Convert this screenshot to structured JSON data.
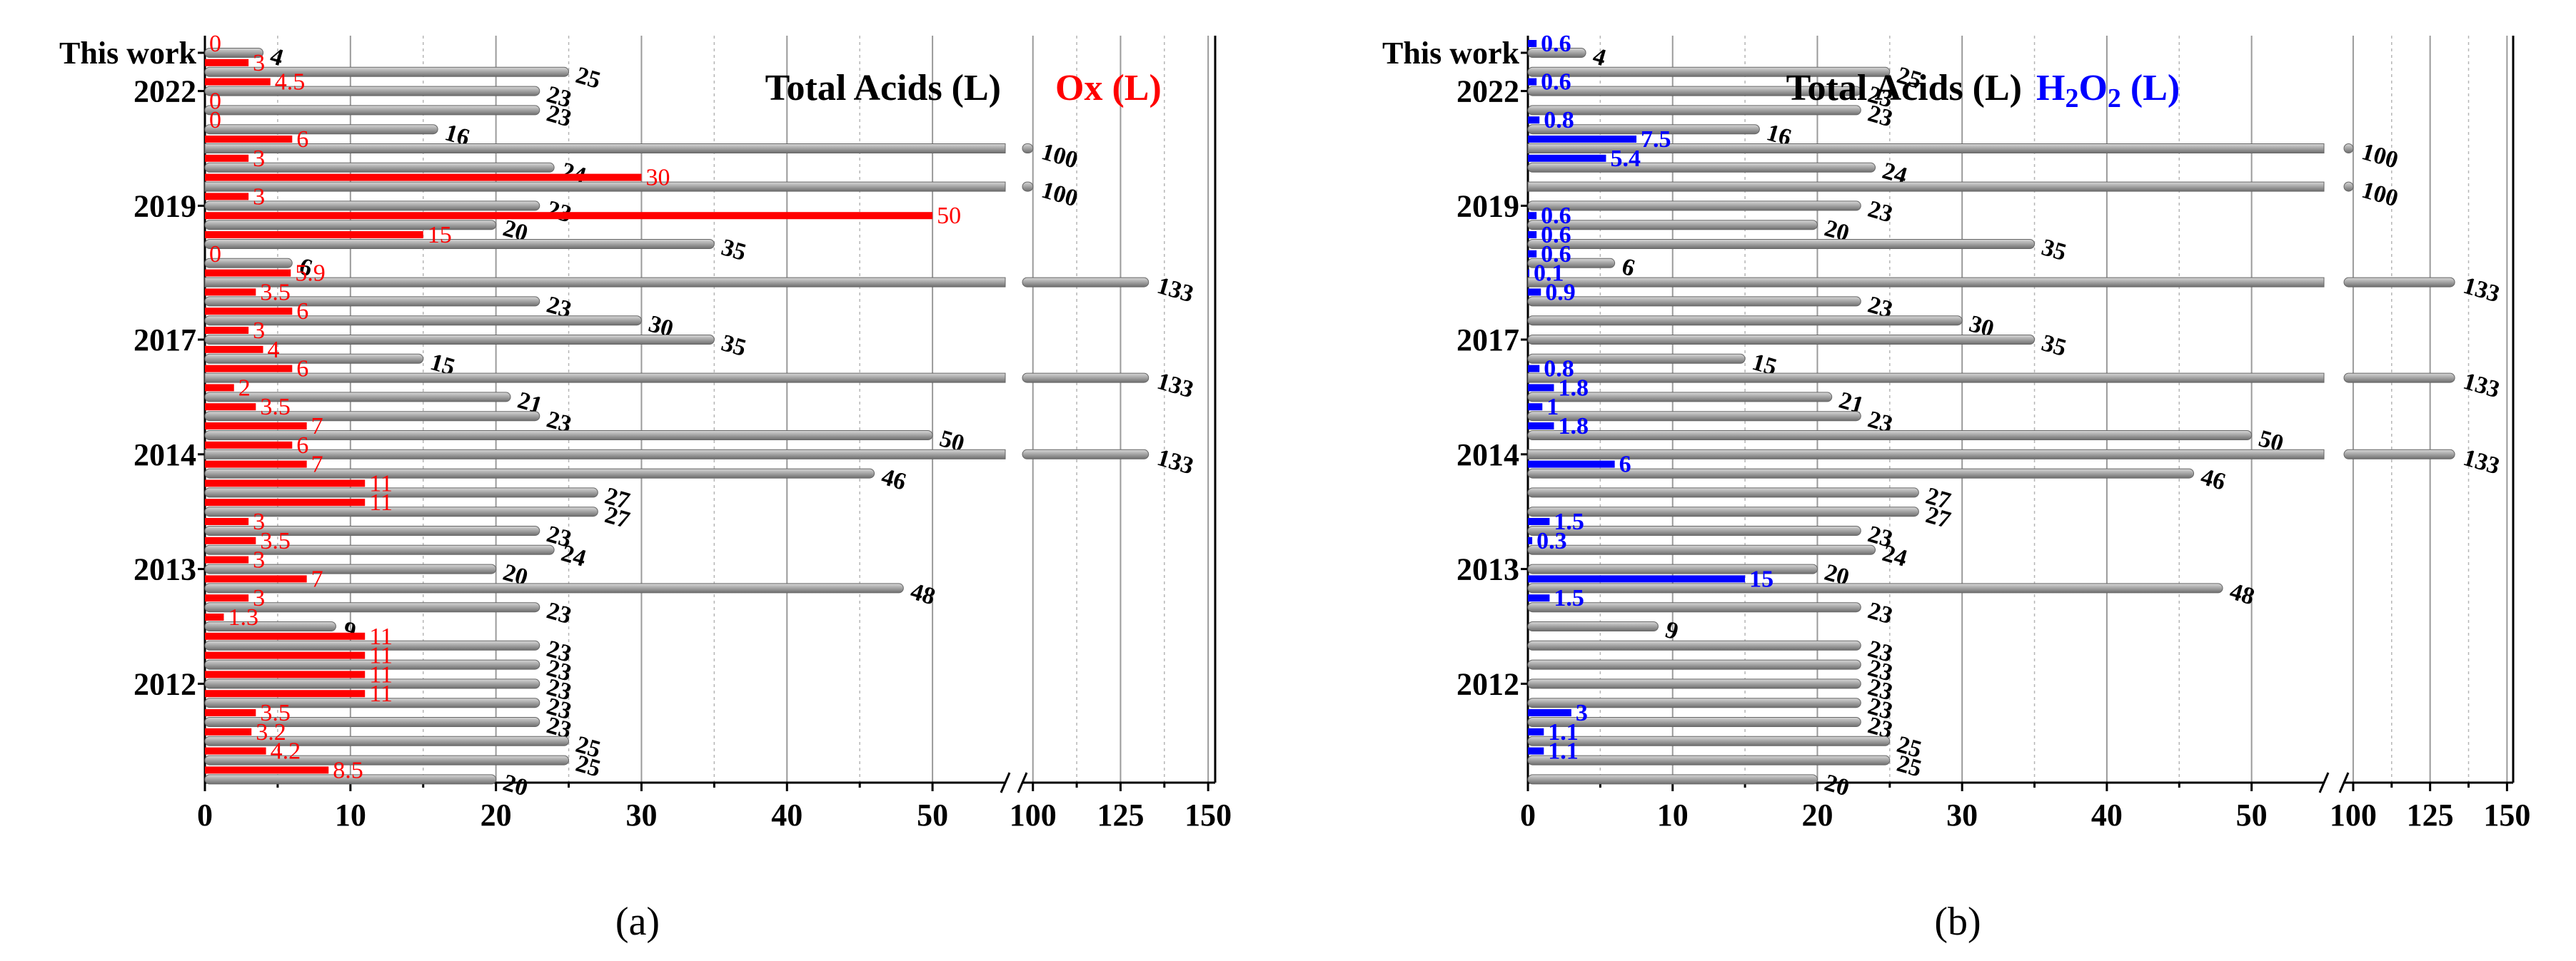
{
  "figure": {
    "panel_labels": [
      "(a)",
      "(b)"
    ]
  },
  "chart_data": [
    {
      "type": "bar",
      "orientation": "horizontal",
      "panel_label": "(a)",
      "title": "",
      "legend": [
        {
          "name": "Total Acids (L)",
          "color": "#000000"
        },
        {
          "name": "Ox (L)",
          "color": "#ff0000"
        }
      ],
      "y_tick_labels": [
        {
          "label": "This work",
          "row": 0
        },
        {
          "label": "2022",
          "row": 2
        },
        {
          "label": "2019",
          "row": 8
        },
        {
          "label": "2017",
          "row": 15
        },
        {
          "label": "2014",
          "row": 21
        },
        {
          "label": "2013",
          "row": 27
        },
        {
          "label": "2012",
          "row": 33
        }
      ],
      "x_axis": {
        "broken": true,
        "segment1": {
          "range": [
            0,
            55
          ],
          "ticks": [
            0,
            10,
            20,
            30,
            40,
            50
          ],
          "minor": [
            5,
            15,
            25,
            35,
            45
          ]
        },
        "segment2": {
          "range": [
            97,
            152
          ],
          "ticks": [
            100,
            125,
            150
          ],
          "minor": [
            112.5,
            137.5
          ]
        }
      },
      "series": [
        {
          "name": "Total Acids (L)",
          "color": "#9a9a9a",
          "values": [
            4,
            25,
            23,
            23,
            16,
            100,
            24,
            100,
            23,
            20,
            35,
            6,
            133,
            23,
            30,
            35,
            15,
            133,
            21,
            23,
            50,
            133,
            46,
            27,
            27,
            23,
            24,
            20,
            48,
            23,
            9,
            23,
            23,
            23,
            23,
            23,
            25,
            25,
            20
          ]
        },
        {
          "name": "Ox (L)",
          "color": "#ff0000",
          "values": [
            0,
            3,
            4.5,
            0,
            0,
            6,
            3,
            30,
            3,
            50,
            15,
            0,
            5.9,
            3.5,
            6,
            3,
            4,
            6,
            2,
            3.5,
            7,
            6,
            7,
            11,
            11,
            3,
            3.5,
            3,
            7,
            3,
            1.3,
            11,
            11,
            11,
            11,
            3.5,
            3.2,
            4.2,
            8.5
          ],
          "labels": [
            "0",
            "3",
            "4.5",
            "0",
            "0",
            "6",
            "3",
            "30",
            "3",
            "50",
            "15",
            "0",
            "5.9",
            "3.5",
            "6",
            "3",
            "4",
            "6",
            "2",
            "3.5",
            "7",
            "6",
            "7",
            "11",
            "11",
            "3",
            "3.5",
            "3",
            "7",
            "3",
            "1.3",
            "11",
            "11",
            "11",
            "11",
            "3.5",
            "3.2",
            "4.2",
            "8.5"
          ]
        }
      ]
    },
    {
      "type": "bar",
      "orientation": "horizontal",
      "panel_label": "(b)",
      "title": "",
      "legend": [
        {
          "name": "Total Acids (L)",
          "color": "#000000"
        },
        {
          "name": "H2O2 (L)",
          "color": "#0000ff"
        }
      ],
      "y_tick_labels": [
        {
          "label": "This work",
          "row": 0
        },
        {
          "label": "2022",
          "row": 2
        },
        {
          "label": "2019",
          "row": 8
        },
        {
          "label": "2017",
          "row": 15
        },
        {
          "label": "2014",
          "row": 21
        },
        {
          "label": "2013",
          "row": 27
        },
        {
          "label": "2012",
          "row": 33
        }
      ],
      "x_axis": {
        "broken": true,
        "segment1": {
          "range": [
            0,
            55
          ],
          "ticks": [
            0,
            10,
            20,
            30,
            40,
            50
          ],
          "minor": [
            5,
            15,
            25,
            35,
            45
          ]
        },
        "segment2": {
          "range": [
            97,
            152
          ],
          "ticks": [
            100,
            125,
            150
          ],
          "minor": [
            112.5,
            137.5
          ]
        }
      },
      "series": [
        {
          "name": "Total Acids (L)",
          "color": "#9a9a9a",
          "values": [
            4,
            25,
            23,
            23,
            16,
            100,
            24,
            100,
            23,
            20,
            35,
            6,
            133,
            23,
            30,
            35,
            15,
            133,
            21,
            23,
            50,
            133,
            46,
            27,
            27,
            23,
            24,
            20,
            48,
            23,
            9,
            23,
            23,
            23,
            23,
            23,
            25,
            25,
            20
          ]
        },
        {
          "name": "H2O2 (L)",
          "color": "#0000ff",
          "values": [
            0.6,
            0,
            0.6,
            0,
            0.8,
            7.5,
            5.4,
            0,
            0,
            0.6,
            0.6,
            0.6,
            0.1,
            0.9,
            0,
            0,
            0,
            0.8,
            1.8,
            1,
            1.8,
            0,
            6,
            0,
            0,
            1.5,
            0.3,
            0,
            15,
            1.5,
            0,
            0,
            0,
            0,
            0,
            3,
            1.1,
            1.1,
            0
          ],
          "labels": [
            "0.6",
            "",
            "0.6",
            "",
            "0.8",
            "7.5",
            "5.4",
            "",
            "",
            "0.6",
            "0.6",
            "0.6",
            "0.1",
            "0.9",
            "",
            "",
            "",
            "0.8",
            "1.8",
            "1",
            "1.8",
            "",
            "6",
            "",
            "",
            "1.5",
            "0.3",
            "",
            "15",
            "1.5",
            "",
            "",
            "",
            "",
            "",
            "3",
            "1.1",
            "1.1",
            ""
          ]
        }
      ]
    }
  ]
}
